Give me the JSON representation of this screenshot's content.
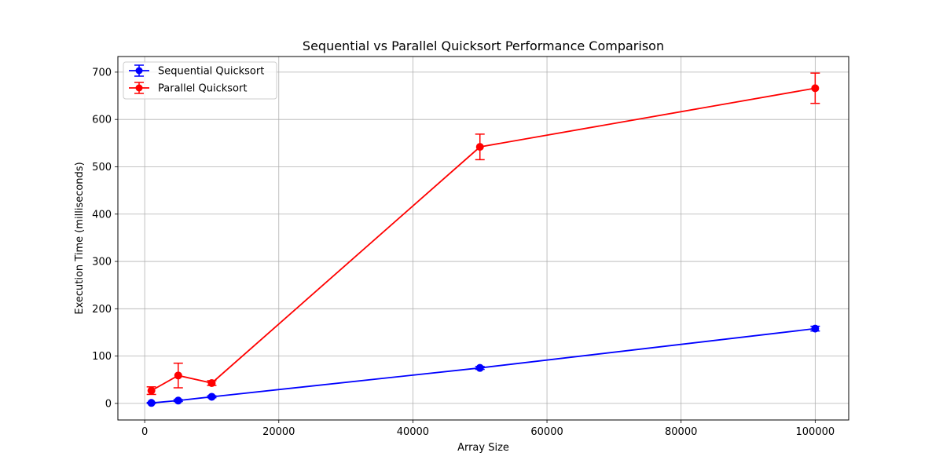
{
  "chart_data": {
    "type": "line",
    "title": "Sequential vs Parallel Quicksort Performance Comparison",
    "xlabel": "Array Size",
    "ylabel": "Execution Time (milliseconds)",
    "xlim": [
      -4000,
      105000
    ],
    "ylim": [
      -35,
      733
    ],
    "xticks": [
      0,
      20000,
      40000,
      60000,
      80000,
      100000
    ],
    "yticks": [
      0,
      100,
      200,
      300,
      400,
      500,
      600,
      700
    ],
    "grid": true,
    "legend_position": "top-left",
    "series": [
      {
        "name": "Sequential Quicksort",
        "color": "#0000ff",
        "x": [
          1000,
          5000,
          10000,
          50000,
          100000
        ],
        "y": [
          1,
          6,
          14,
          75,
          158
        ],
        "err": [
          1,
          2,
          2,
          3,
          5
        ]
      },
      {
        "name": "Parallel Quicksort",
        "color": "#ff0000",
        "x": [
          1000,
          5000,
          10000,
          50000,
          100000
        ],
        "y": [
          27,
          59,
          43,
          542,
          666
        ],
        "err": [
          8,
          26,
          5,
          27,
          32
        ]
      }
    ]
  }
}
